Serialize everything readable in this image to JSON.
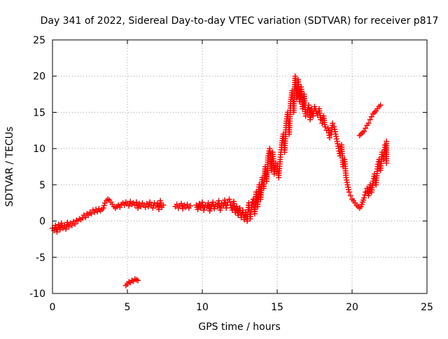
{
  "chart_data": {
    "type": "scatter",
    "title": "Day 341 of 2022, Sidereal Day-to-day VTEC variation (SDTVAR) for receiver p817",
    "xlabel": "GPS time / hours",
    "ylabel": "SDTVAR / TECUs",
    "xlim": [
      0,
      25
    ],
    "ylim": [
      -10,
      25
    ],
    "xticks": [
      0,
      5,
      10,
      15,
      20,
      25
    ],
    "yticks": [
      -10,
      -5,
      0,
      5,
      10,
      15,
      20,
      25
    ],
    "grid": true,
    "marker": "plus",
    "color": "#ff0000",
    "series": [
      {
        "name": "main-trace",
        "points": [
          [
            0.0,
            -1.0
          ],
          [
            0.1,
            -1.3
          ],
          [
            0.2,
            -0.6
          ],
          [
            0.3,
            -1.5
          ],
          [
            0.4,
            -0.5
          ],
          [
            0.5,
            -1.2
          ],
          [
            0.6,
            -0.3
          ],
          [
            0.7,
            -1.0
          ],
          [
            0.8,
            -0.6
          ],
          [
            0.9,
            -1.1
          ],
          [
            1.0,
            -0.2
          ],
          [
            1.1,
            -0.8
          ],
          [
            1.2,
            -0.3
          ],
          [
            1.3,
            -0.6
          ],
          [
            1.4,
            -0.1
          ],
          [
            1.5,
            -0.4
          ],
          [
            1.6,
            0.1
          ],
          [
            1.7,
            0.0
          ],
          [
            1.8,
            0.3
          ],
          [
            1.9,
            0.2
          ],
          [
            2.0,
            0.4
          ],
          [
            2.1,
            0.8
          ],
          [
            2.2,
            0.5
          ],
          [
            2.3,
            1.0
          ],
          [
            2.4,
            0.8
          ],
          [
            2.5,
            1.2
          ],
          [
            2.6,
            1.0
          ],
          [
            2.7,
            1.5
          ],
          [
            2.8,
            1.2
          ],
          [
            2.9,
            1.6
          ],
          [
            3.0,
            1.3
          ],
          [
            3.1,
            1.7
          ],
          [
            3.2,
            1.4
          ],
          [
            3.3,
            1.6
          ],
          [
            3.4,
            1.8
          ],
          [
            3.5,
            2.5
          ],
          [
            3.6,
            2.8
          ],
          [
            3.7,
            3.0
          ],
          [
            3.8,
            2.9
          ],
          [
            3.9,
            2.6
          ],
          [
            4.0,
            2.3
          ],
          [
            4.1,
            2.0
          ],
          [
            4.2,
            1.8
          ],
          [
            4.3,
            2.0
          ],
          [
            4.4,
            2.2
          ],
          [
            4.5,
            1.9
          ],
          [
            4.6,
            2.3
          ],
          [
            4.7,
            2.5
          ],
          [
            4.8,
            2.2
          ],
          [
            4.9,
            2.6
          ],
          [
            5.0,
            2.4
          ],
          [
            5.1,
            2.1
          ],
          [
            5.2,
            2.7
          ],
          [
            5.3,
            2.3
          ],
          [
            5.4,
            2.5
          ],
          [
            5.5,
            2.2
          ],
          [
            5.6,
            2.6
          ],
          [
            5.7,
            1.8
          ],
          [
            5.8,
            2.4
          ],
          [
            5.9,
            2.0
          ],
          [
            6.0,
            2.5
          ],
          [
            6.1,
            2.2
          ],
          [
            6.2,
            1.9
          ],
          [
            6.3,
            2.4
          ],
          [
            6.4,
            2.0
          ],
          [
            6.5,
            2.6
          ],
          [
            6.6,
            2.2
          ],
          [
            6.7,
            1.8
          ],
          [
            6.8,
            2.5
          ],
          [
            6.9,
            2.1
          ],
          [
            7.0,
            2.4
          ],
          [
            7.1,
            1.6
          ],
          [
            7.2,
            2.8
          ],
          [
            7.3,
            1.9
          ],
          [
            7.4,
            2.2
          ],
          [
            8.2,
            2.0
          ],
          [
            8.3,
            2.3
          ],
          [
            8.4,
            1.8
          ],
          [
            8.5,
            2.1
          ],
          [
            8.6,
            2.4
          ],
          [
            8.7,
            1.7
          ],
          [
            8.8,
            2.2
          ],
          [
            8.9,
            1.9
          ],
          [
            9.0,
            2.3
          ],
          [
            9.1,
            1.8
          ],
          [
            9.2,
            2.1
          ],
          [
            9.6,
            2.2
          ],
          [
            9.7,
            1.6
          ],
          [
            9.8,
            2.4
          ],
          [
            9.9,
            1.8
          ],
          [
            10.0,
            2.6
          ],
          [
            10.1,
            1.5
          ],
          [
            10.2,
            2.2
          ],
          [
            10.3,
            1.9
          ],
          [
            10.4,
            2.5
          ],
          [
            10.5,
            1.4
          ],
          [
            10.6,
            2.0
          ],
          [
            10.7,
            2.6
          ],
          [
            10.8,
            1.7
          ],
          [
            10.9,
            2.3
          ],
          [
            11.0,
            2.0
          ],
          [
            11.1,
            2.8
          ],
          [
            11.2,
            1.5
          ],
          [
            11.3,
            2.4
          ],
          [
            11.4,
            2.1
          ],
          [
            11.5,
            2.9
          ],
          [
            11.6,
            1.8
          ],
          [
            11.7,
            2.6
          ],
          [
            11.8,
            3.0
          ],
          [
            11.9,
            2.2
          ],
          [
            12.0,
            1.5
          ],
          [
            12.1,
            2.7
          ],
          [
            12.2,
            1.2
          ],
          [
            12.3,
            2.0
          ],
          [
            12.4,
            0.8
          ],
          [
            12.5,
            1.8
          ],
          [
            12.6,
            0.5
          ],
          [
            12.7,
            1.5
          ],
          [
            12.8,
            0.2
          ],
          [
            12.9,
            1.2
          ],
          [
            13.0,
            0.0
          ],
          [
            13.1,
            2.5
          ],
          [
            13.2,
            0.3
          ],
          [
            13.3,
            2.2
          ],
          [
            13.4,
            3.0
          ],
          [
            13.5,
            1.0
          ],
          [
            13.6,
            4.0
          ],
          [
            13.7,
            2.0
          ],
          [
            13.8,
            5.0
          ],
          [
            13.9,
            3.0
          ],
          [
            14.0,
            6.0
          ],
          [
            14.1,
            4.5
          ],
          [
            14.2,
            7.5
          ],
          [
            14.3,
            5.5
          ],
          [
            14.4,
            9.0
          ],
          [
            14.5,
            10.0
          ],
          [
            14.6,
            7.0
          ],
          [
            14.7,
            9.5
          ],
          [
            14.8,
            6.5
          ],
          [
            14.9,
            8.0
          ],
          [
            15.0,
            7.5
          ],
          [
            15.1,
            6.0
          ],
          [
            15.2,
            8.5
          ],
          [
            15.3,
            10.5
          ],
          [
            15.4,
            12.0
          ],
          [
            15.5,
            9.5
          ],
          [
            15.6,
            13.5
          ],
          [
            15.7,
            15.0
          ],
          [
            15.8,
            12.0
          ],
          [
            15.9,
            16.5
          ],
          [
            16.0,
            18.0
          ],
          [
            16.1,
            15.0
          ],
          [
            16.2,
            20.0
          ],
          [
            16.3,
            17.0
          ],
          [
            16.4,
            19.5
          ],
          [
            16.5,
            16.5
          ],
          [
            16.6,
            18.5
          ],
          [
            16.7,
            15.5
          ],
          [
            16.8,
            17.5
          ],
          [
            16.9,
            14.5
          ],
          [
            17.0,
            15.0
          ],
          [
            17.1,
            16.0
          ],
          [
            17.2,
            14.0
          ],
          [
            17.3,
            15.5
          ],
          [
            17.4,
            14.5
          ],
          [
            17.5,
            15.8
          ],
          [
            17.6,
            15.2
          ],
          [
            17.7,
            14.6
          ],
          [
            17.8,
            15.5
          ],
          [
            17.9,
            14.0
          ],
          [
            18.0,
            13.5
          ],
          [
            18.1,
            14.5
          ],
          [
            18.2,
            13.0
          ],
          [
            18.3,
            12.5
          ],
          [
            18.4,
            12.8
          ],
          [
            18.5,
            11.5
          ],
          [
            18.6,
            12.0
          ],
          [
            18.7,
            13.5
          ],
          [
            18.8,
            13.0
          ],
          [
            18.9,
            12.0
          ],
          [
            19.0,
            11.0
          ],
          [
            19.1,
            10.0
          ],
          [
            19.2,
            9.0
          ],
          [
            19.3,
            10.5
          ],
          [
            19.4,
            7.5
          ],
          [
            19.5,
            8.5
          ],
          [
            19.6,
            6.0
          ],
          [
            19.7,
            5.0
          ],
          [
            19.8,
            4.0
          ],
          [
            19.9,
            3.5
          ],
          [
            20.0,
            3.0
          ],
          [
            20.1,
            2.8
          ],
          [
            20.2,
            2.5
          ],
          [
            20.3,
            2.2
          ],
          [
            20.4,
            2.0
          ],
          [
            20.5,
            1.8
          ],
          [
            20.6,
            2.0
          ],
          [
            20.7,
            2.6
          ],
          [
            20.8,
            3.2
          ],
          [
            20.9,
            4.0
          ],
          [
            21.0,
            4.5
          ],
          [
            21.1,
            3.5
          ],
          [
            21.2,
            5.0
          ],
          [
            21.3,
            4.0
          ],
          [
            21.4,
            5.5
          ],
          [
            21.5,
            6.5
          ],
          [
            21.6,
            5.0
          ],
          [
            21.7,
            7.5
          ],
          [
            21.8,
            8.5
          ],
          [
            21.9,
            7.0
          ],
          [
            22.0,
            9.5
          ],
          [
            22.1,
            8.5
          ],
          [
            22.2,
            10.5
          ],
          [
            22.3,
            8.0
          ],
          [
            22.3,
            11.0
          ]
        ]
      },
      {
        "name": "upper-branch",
        "points": [
          [
            20.5,
            11.8
          ],
          [
            20.6,
            12.0
          ],
          [
            20.7,
            12.2
          ],
          [
            20.8,
            12.4
          ],
          [
            20.9,
            12.8
          ],
          [
            21.0,
            13.2
          ],
          [
            21.1,
            13.5
          ],
          [
            21.2,
            14.0
          ],
          [
            21.3,
            14.4
          ],
          [
            21.4,
            14.8
          ],
          [
            21.5,
            15.0
          ],
          [
            21.6,
            15.2
          ],
          [
            21.7,
            15.5
          ],
          [
            21.8,
            15.8
          ],
          [
            21.9,
            16.0
          ]
        ]
      },
      {
        "name": "negative-outlier",
        "points": [
          [
            4.9,
            -8.9
          ],
          [
            5.0,
            -8.7
          ],
          [
            5.1,
            -8.4
          ],
          [
            5.2,
            -8.5
          ],
          [
            5.3,
            -8.2
          ],
          [
            5.4,
            -8.3
          ],
          [
            5.5,
            -8.0
          ],
          [
            5.6,
            -8.1
          ],
          [
            5.7,
            -8.2
          ]
        ]
      }
    ]
  }
}
